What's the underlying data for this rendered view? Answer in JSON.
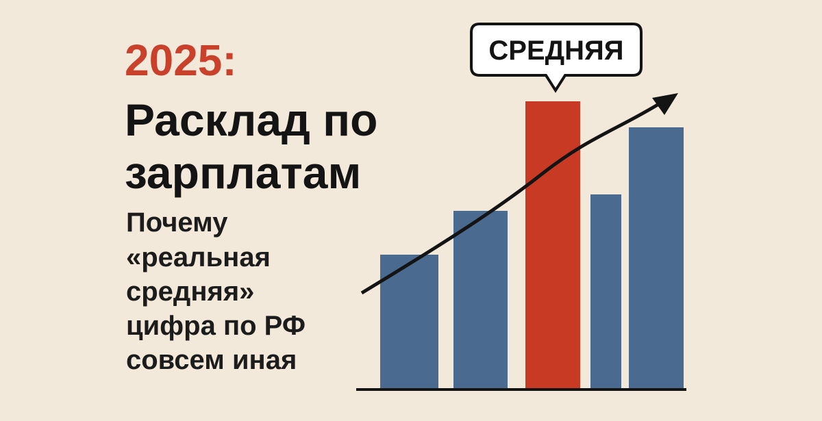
{
  "header": {
    "year": "2025:",
    "title_lines": [
      "Расклад по",
      "зарплатам"
    ]
  },
  "subtitle_lines": [
    "Почему",
    "«реальная",
    "средняя»",
    "цифра по РФ",
    "совсем иная"
  ],
  "badge": "СРЕДНЯЯ"
}
